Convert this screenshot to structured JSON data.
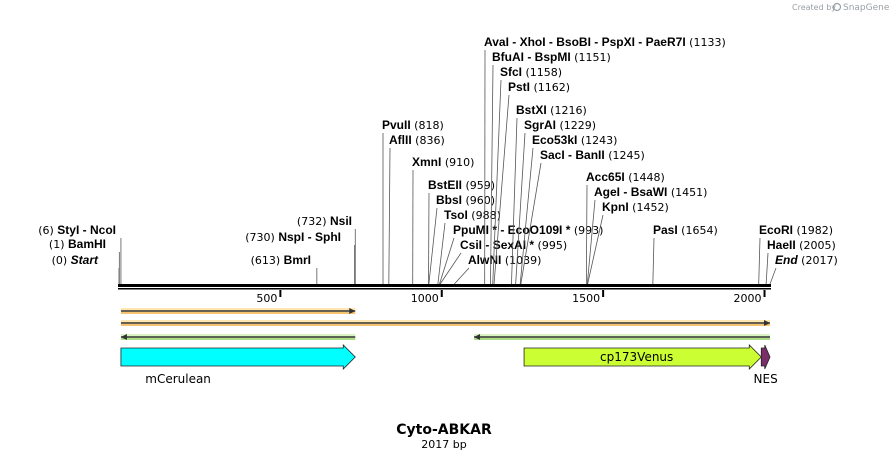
{
  "credit": {
    "prefix": "Created by",
    "brand": "SnapGene"
  },
  "map": {
    "title": "Cyto-ABKAR",
    "length_label": "2017 bp",
    "length": 2017,
    "ticks": [
      {
        "value": 500,
        "label": "500"
      },
      {
        "value": 1000,
        "label": "1000"
      },
      {
        "value": 1500,
        "label": "1500"
      },
      {
        "value": 2000,
        "label": "2000"
      }
    ],
    "features": [
      {
        "name": "mCerulean",
        "label": "mCerulean",
        "start": 6,
        "end": 732,
        "color": "#00ffff"
      },
      {
        "name": "cp173Venus",
        "label": "cp173Venus",
        "start": 1255,
        "end": 1990,
        "color": "#ccff33"
      },
      {
        "name": "NES",
        "label": "NES",
        "start": 1990,
        "end": 2017,
        "color": "#7a2e6a"
      }
    ],
    "orfs": [
      {
        "name": "orf-forward-1",
        "start": 6,
        "end": 732,
        "dir": "forward",
        "color": "#f0a030"
      },
      {
        "name": "orf-forward-2",
        "start": 6,
        "end": 2017,
        "dir": "forward",
        "color": "#f0a030"
      },
      {
        "name": "orf-reverse-1",
        "start": 6,
        "end": 732,
        "dir": "reverse",
        "color": "#7ac943"
      },
      {
        "name": "orf-reverse-2",
        "start": 1100,
        "end": 2017,
        "dir": "reverse",
        "color": "#7ac943"
      }
    ],
    "sites": [
      {
        "name": "styi-ncoi",
        "segments": [
          {
            "text": "StyI"
          },
          {
            "text": "NcoI",
            "sep": true
          }
        ],
        "pos": "(6)",
        "at": 6,
        "prefix": true
      },
      {
        "name": "bamhi",
        "segments": [
          {
            "text": "BamHI"
          }
        ],
        "pos": "(1)",
        "at": 1,
        "prefix": true
      },
      {
        "name": "start",
        "segments": [
          {
            "text": "Start",
            "italic": true
          }
        ],
        "pos": "(0)",
        "at": 0,
        "prefix": true
      },
      {
        "name": "bmri",
        "segments": [
          {
            "text": "BmrI"
          }
        ],
        "pos": "(613)",
        "at": 613,
        "prefix": true
      },
      {
        "name": "nspi-sphi",
        "segments": [
          {
            "text": "NspI"
          },
          {
            "text": "SphI",
            "sep": true
          }
        ],
        "pos": "(730)",
        "at": 730,
        "prefix": true
      },
      {
        "name": "nsii",
        "segments": [
          {
            "text": "NsiI"
          }
        ],
        "pos": "(732)",
        "at": 732,
        "prefix": true
      },
      {
        "name": "pvuii",
        "segments": [
          {
            "text": "PvuII"
          }
        ],
        "pos": "(818)",
        "at": 818
      },
      {
        "name": "aflii",
        "segments": [
          {
            "text": "AflII"
          }
        ],
        "pos": "(836)",
        "at": 836
      },
      {
        "name": "xmni",
        "segments": [
          {
            "text": "XmnI"
          }
        ],
        "pos": "(910)",
        "at": 910
      },
      {
        "name": "bsteii",
        "segments": [
          {
            "text": "BstEII"
          }
        ],
        "pos": "(959)",
        "at": 959
      },
      {
        "name": "bbsi",
        "segments": [
          {
            "text": "BbsI"
          }
        ],
        "pos": "(960)",
        "at": 960
      },
      {
        "name": "tsoi",
        "segments": [
          {
            "text": "TsoI"
          }
        ],
        "pos": "(988)",
        "at": 988
      },
      {
        "name": "ppumi-eco0109i",
        "segments": [
          {
            "text": "PpuMI *"
          },
          {
            "text": "EcoO109I *",
            "sep": true
          }
        ],
        "pos": "(993)",
        "at": 993
      },
      {
        "name": "csii-sexai",
        "segments": [
          {
            "text": "CsiI"
          },
          {
            "text": "SexAI *",
            "sep": true
          }
        ],
        "pos": "(995)",
        "at": 995
      },
      {
        "name": "alwni",
        "segments": [
          {
            "text": "AlwNI"
          }
        ],
        "pos": "(1039)",
        "at": 1039
      },
      {
        "name": "avai-group",
        "segments": [
          {
            "text": "AvaI"
          },
          {
            "text": "XhoI",
            "sep": true
          },
          {
            "text": "BsoBI",
            "sep": true
          },
          {
            "text": "PspXI",
            "sep": true
          },
          {
            "text": "PaeR7I",
            "sep": true
          }
        ],
        "pos": "(1133)",
        "at": 1133
      },
      {
        "name": "bfuai-bspmi",
        "segments": [
          {
            "text": "BfuAI"
          },
          {
            "text": "BspMI",
            "sep": true
          }
        ],
        "pos": "(1151)",
        "at": 1151
      },
      {
        "name": "sfci",
        "segments": [
          {
            "text": "SfcI"
          }
        ],
        "pos": "(1158)",
        "at": 1158
      },
      {
        "name": "psti",
        "segments": [
          {
            "text": "PstI"
          }
        ],
        "pos": "(1162)",
        "at": 1162
      },
      {
        "name": "bstxi",
        "segments": [
          {
            "text": "BstXI"
          }
        ],
        "pos": "(1216)",
        "at": 1216
      },
      {
        "name": "sgrai",
        "segments": [
          {
            "text": "SgrAI"
          }
        ],
        "pos": "(1229)",
        "at": 1229
      },
      {
        "name": "eco53ki",
        "segments": [
          {
            "text": "Eco53kI"
          }
        ],
        "pos": "(1243)",
        "at": 1243
      },
      {
        "name": "saci-banii",
        "segments": [
          {
            "text": "SacI"
          },
          {
            "text": "BanII",
            "sep": true
          }
        ],
        "pos": "(1245)",
        "at": 1245
      },
      {
        "name": "acc65i",
        "segments": [
          {
            "text": "Acc65I"
          }
        ],
        "pos": "(1448)",
        "at": 1448
      },
      {
        "name": "agei-bsawi",
        "segments": [
          {
            "text": "AgeI"
          },
          {
            "text": "BsaWI",
            "sep": true
          }
        ],
        "pos": "(1451)",
        "at": 1451
      },
      {
        "name": "kpni",
        "segments": [
          {
            "text": "KpnI"
          }
        ],
        "pos": "(1452)",
        "at": 1452
      },
      {
        "name": "pasi",
        "segments": [
          {
            "text": "PasI"
          }
        ],
        "pos": "(1654)",
        "at": 1654
      },
      {
        "name": "ecori",
        "segments": [
          {
            "text": "EcoRI"
          }
        ],
        "pos": "(1982)",
        "at": 1982
      },
      {
        "name": "haeii",
        "segments": [
          {
            "text": "HaeII"
          }
        ],
        "pos": "(2005)",
        "at": 2005
      },
      {
        "name": "end",
        "segments": [
          {
            "text": "End",
            "italic": true
          }
        ],
        "pos": "(2017)",
        "at": 2017
      }
    ]
  }
}
